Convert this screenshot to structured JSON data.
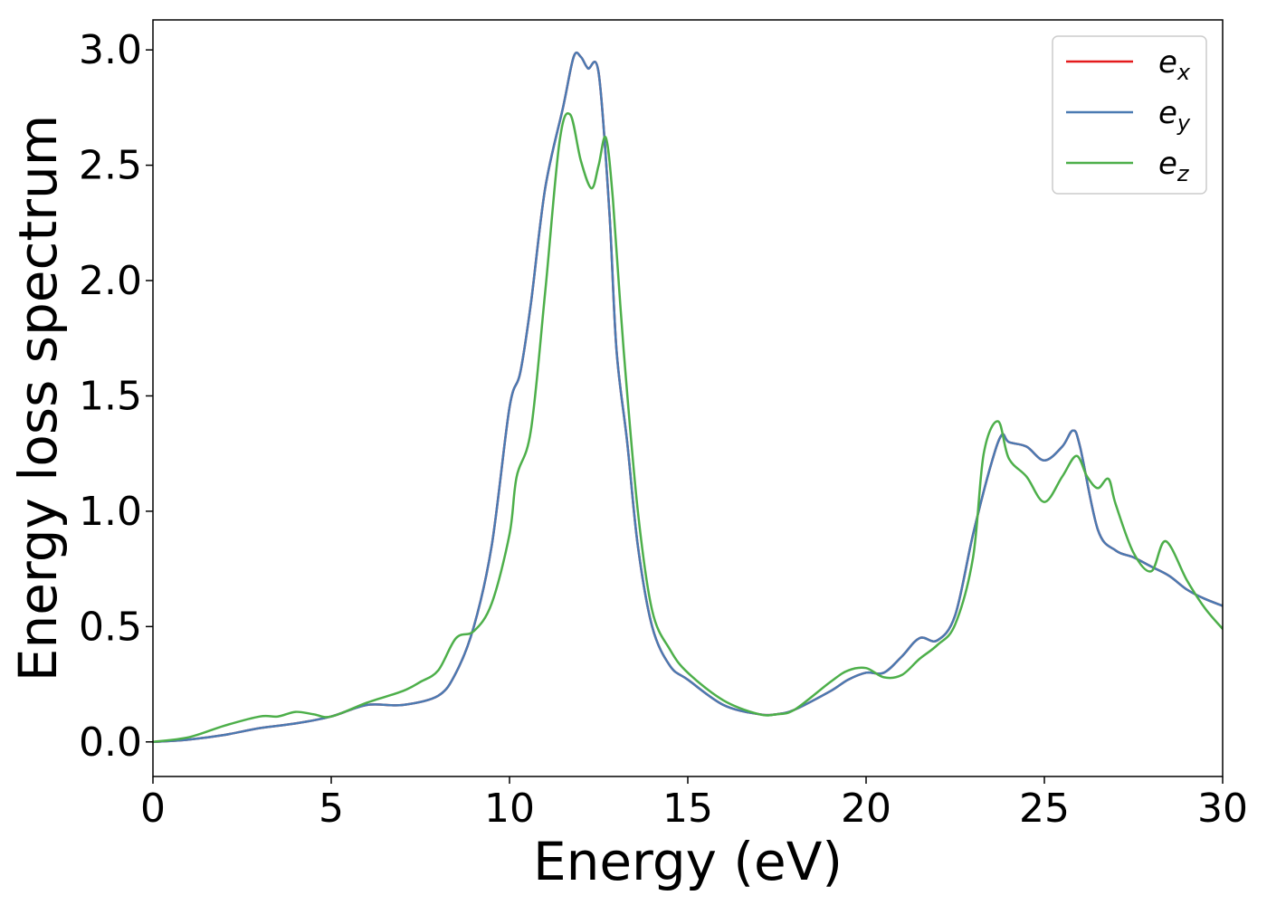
{
  "chart_data": {
    "type": "line",
    "title": "",
    "xlabel": "Energy (eV)",
    "ylabel": "Energy loss spectrum",
    "xlim": [
      0,
      30
    ],
    "ylim": [
      -0.15,
      3.13
    ],
    "xticks": [
      0,
      5,
      10,
      15,
      20,
      25,
      30
    ],
    "xtick_labels": [
      "0",
      "5",
      "10",
      "15",
      "20",
      "25",
      "30"
    ],
    "yticks": [
      0.0,
      0.5,
      1.0,
      1.5,
      2.0,
      2.5,
      3.0
    ],
    "ytick_labels": [
      "0.0",
      "0.5",
      "1.0",
      "1.5",
      "2.0",
      "2.5",
      "3.0"
    ],
    "grid": false,
    "legend_position": "top-right",
    "series": [
      {
        "name": "e_x",
        "label_main": "e",
        "label_sub": "x",
        "color": "#e41a1c",
        "x": [
          0,
          1,
          2,
          3,
          4,
          5,
          6,
          7,
          8,
          8.5,
          9,
          9.5,
          10,
          10.3,
          10.6,
          11,
          11.5,
          11.8,
          12,
          12.2,
          12.5,
          12.8,
          13,
          13.3,
          13.6,
          14,
          14.5,
          15,
          16,
          17,
          17.5,
          18,
          19,
          19.5,
          20,
          20.5,
          21,
          21.5,
          22,
          22.5,
          23,
          23.5,
          23.8,
          24,
          24.5,
          25,
          25.5,
          25.8,
          26,
          26.5,
          27,
          27.5,
          28,
          28.5,
          29,
          29.5,
          30
        ],
        "y": [
          0,
          0.01,
          0.03,
          0.06,
          0.08,
          0.11,
          0.16,
          0.16,
          0.2,
          0.3,
          0.5,
          0.85,
          1.45,
          1.6,
          1.9,
          2.4,
          2.75,
          2.97,
          2.97,
          2.92,
          2.9,
          2.3,
          1.7,
          1.3,
          0.85,
          0.5,
          0.33,
          0.27,
          0.16,
          0.12,
          0.12,
          0.14,
          0.22,
          0.27,
          0.3,
          0.3,
          0.37,
          0.45,
          0.44,
          0.55,
          0.9,
          1.2,
          1.33,
          1.3,
          1.28,
          1.22,
          1.28,
          1.35,
          1.28,
          0.92,
          0.83,
          0.8,
          0.76,
          0.72,
          0.66,
          0.62,
          0.59
        ]
      },
      {
        "name": "e_y",
        "label_main": "e",
        "label_sub": "y",
        "color": "#4a7ab2",
        "x": [
          0,
          1,
          2,
          3,
          4,
          5,
          6,
          7,
          8,
          8.5,
          9,
          9.5,
          10,
          10.3,
          10.6,
          11,
          11.5,
          11.8,
          12,
          12.2,
          12.5,
          12.8,
          13,
          13.3,
          13.6,
          14,
          14.5,
          15,
          16,
          17,
          17.5,
          18,
          19,
          19.5,
          20,
          20.5,
          21,
          21.5,
          22,
          22.5,
          23,
          23.5,
          23.8,
          24,
          24.5,
          25,
          25.5,
          25.8,
          26,
          26.5,
          27,
          27.5,
          28,
          28.5,
          29,
          29.5,
          30
        ],
        "y": [
          0,
          0.01,
          0.03,
          0.06,
          0.08,
          0.11,
          0.16,
          0.16,
          0.2,
          0.3,
          0.5,
          0.85,
          1.45,
          1.6,
          1.9,
          2.4,
          2.75,
          2.97,
          2.97,
          2.92,
          2.9,
          2.3,
          1.7,
          1.3,
          0.85,
          0.5,
          0.33,
          0.27,
          0.16,
          0.12,
          0.12,
          0.14,
          0.22,
          0.27,
          0.3,
          0.3,
          0.37,
          0.45,
          0.44,
          0.55,
          0.9,
          1.2,
          1.33,
          1.3,
          1.28,
          1.22,
          1.28,
          1.35,
          1.28,
          0.92,
          0.83,
          0.8,
          0.76,
          0.72,
          0.66,
          0.62,
          0.59
        ]
      },
      {
        "name": "e_z",
        "label_main": "e",
        "label_sub": "z",
        "color": "#4daf4a",
        "x": [
          0,
          1,
          2,
          3,
          3.5,
          4,
          4.5,
          5,
          6,
          7,
          7.5,
          8,
          8.5,
          9,
          9.5,
          10,
          10.2,
          10.6,
          11,
          11.4,
          11.7,
          12,
          12.3,
          12.5,
          12.7,
          12.9,
          13.2,
          13.6,
          14,
          14.5,
          15,
          16,
          17,
          17.5,
          18,
          19,
          19.5,
          20,
          20.5,
          21,
          21.5,
          22,
          22.5,
          23,
          23.3,
          23.7,
          24,
          24.5,
          25,
          25.5,
          25.9,
          26.2,
          26.5,
          26.8,
          27,
          27.5,
          28,
          28.4,
          29,
          29.5,
          30
        ],
        "y": [
          0,
          0.02,
          0.07,
          0.11,
          0.11,
          0.13,
          0.12,
          0.11,
          0.17,
          0.22,
          0.26,
          0.31,
          0.45,
          0.48,
          0.6,
          0.9,
          1.15,
          1.35,
          1.95,
          2.6,
          2.72,
          2.52,
          2.4,
          2.5,
          2.62,
          2.35,
          1.7,
          1.0,
          0.57,
          0.4,
          0.3,
          0.18,
          0.12,
          0.12,
          0.14,
          0.26,
          0.31,
          0.32,
          0.28,
          0.29,
          0.36,
          0.42,
          0.51,
          0.8,
          1.25,
          1.39,
          1.23,
          1.15,
          1.04,
          1.15,
          1.24,
          1.15,
          1.1,
          1.14,
          1.03,
          0.82,
          0.74,
          0.87,
          0.7,
          0.58,
          0.49
        ]
      }
    ]
  }
}
